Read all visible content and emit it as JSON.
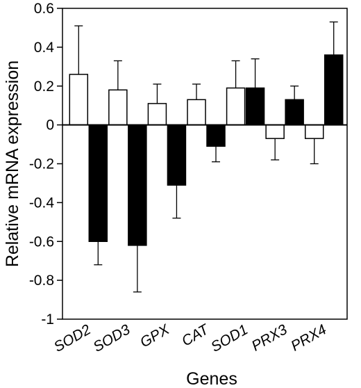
{
  "chart_data": {
    "type": "bar",
    "xlabel": "Genes",
    "ylabel": "Relative mRNA expression",
    "ylim": [
      -1,
      0.6
    ],
    "yticks": [
      0.6,
      0.4,
      0.2,
      0,
      -0.2,
      -0.4,
      -0.6,
      -0.8,
      -1
    ],
    "ytick_labels": [
      "0.6",
      "0.4",
      "0.2",
      "0",
      "-0.2",
      "-0.4",
      "-0.6",
      "-0.8",
      "-1"
    ],
    "categories": [
      "SOD2",
      "SOD3",
      "GPX",
      "CAT",
      "SOD1",
      "PRX3",
      "PRX4"
    ],
    "series": [
      {
        "fill": "white",
        "color": "#ffffff",
        "values": [
          0.26,
          0.18,
          0.11,
          0.13,
          0.19,
          -0.07,
          -0.07
        ],
        "errors": [
          0.25,
          0.15,
          0.1,
          0.08,
          0.14,
          0.11,
          0.13
        ]
      },
      {
        "fill": "black",
        "color": "#000000",
        "values": [
          -0.6,
          -0.62,
          -0.31,
          -0.11,
          0.19,
          0.13,
          0.36
        ],
        "errors": [
          0.12,
          0.24,
          0.17,
          0.08,
          0.15,
          0.07,
          0.17
        ]
      }
    ],
    "grid": false,
    "legend": "none"
  }
}
